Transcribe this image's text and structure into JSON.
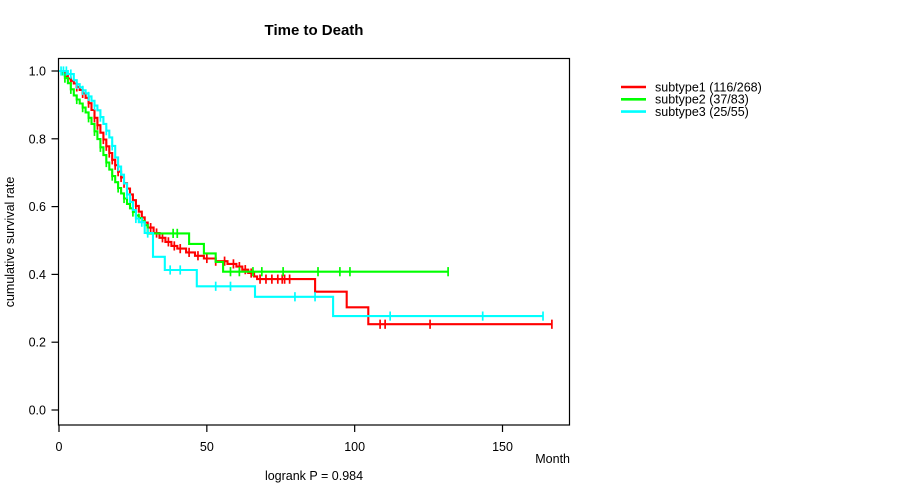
{
  "figure": {
    "title": "Time to Death",
    "ylabel": "cumulative survival rate",
    "xlabel": "Month",
    "annotation": "logrank P = 0.984"
  },
  "colors": {
    "axis": "#000000",
    "text": "#000000",
    "background": "#ffffff",
    "subtype1": "#ff0000",
    "subtype2": "#00ff00",
    "subtype3": "#00ffff"
  },
  "chart_data": {
    "type": "line",
    "subtype": "kaplan-meier-step-curves",
    "title": "Time to Death",
    "xlabel": "Month",
    "ylabel": "cumulative survival rate",
    "annotation": "logrank P = 0.984",
    "xlim": [
      0,
      173
    ],
    "ylim": [
      0,
      1
    ],
    "grid": false,
    "legend_position": "right-outside",
    "xticks": [
      0,
      50,
      100,
      150
    ],
    "xtick_labels": [
      "0",
      "50",
      "100",
      "150"
    ],
    "yticks": [
      0,
      0.2,
      0.4,
      0.6,
      0.8,
      1.0
    ],
    "ytick_labels": [
      "0.0",
      "0.2",
      "0.4",
      "0.6",
      "0.8",
      "1.0"
    ],
    "series": [
      {
        "name": "subtype1",
        "label": "subtype1 (116/268)",
        "events": 116,
        "total": 268,
        "color": "#ff0000",
        "steps": [
          [
            0,
            1.0
          ],
          [
            1,
            0.995
          ],
          [
            2,
            0.985
          ],
          [
            3,
            0.978
          ],
          [
            4,
            0.971
          ],
          [
            5,
            0.963
          ],
          [
            6,
            0.953
          ],
          [
            7,
            0.944
          ],
          [
            8,
            0.934
          ],
          [
            9,
            0.921
          ],
          [
            10,
            0.905
          ],
          [
            11,
            0.885
          ],
          [
            12,
            0.862
          ],
          [
            13,
            0.84
          ],
          [
            14,
            0.818
          ],
          [
            15,
            0.798
          ],
          [
            16,
            0.778
          ],
          [
            17,
            0.758
          ],
          [
            18,
            0.738
          ],
          [
            19,
            0.722
          ],
          [
            20,
            0.703
          ],
          [
            21,
            0.686
          ],
          [
            22,
            0.669
          ],
          [
            23,
            0.653
          ],
          [
            24,
            0.636
          ],
          [
            25,
            0.619
          ],
          [
            26,
            0.602
          ],
          [
            27,
            0.585
          ],
          [
            28,
            0.568
          ],
          [
            29,
            0.553
          ],
          [
            30,
            0.538
          ],
          [
            32,
            0.522
          ],
          [
            34,
            0.508
          ],
          [
            36,
            0.496
          ],
          [
            38,
            0.484
          ],
          [
            40,
            0.476
          ],
          [
            43,
            0.465
          ],
          [
            46,
            0.455
          ],
          [
            49,
            0.447
          ],
          [
            53,
            0.439
          ],
          [
            57,
            0.431
          ],
          [
            60,
            0.423
          ],
          [
            62,
            0.414
          ],
          [
            64,
            0.404
          ],
          [
            66,
            0.394
          ],
          [
            67,
            0.386
          ],
          [
            86.6,
            0.349
          ],
          [
            97.3,
            0.303
          ],
          [
            104.6,
            0.253
          ]
        ],
        "end_month": 166.7,
        "censor_months": [
          4,
          6,
          8,
          10,
          12,
          13,
          15,
          16,
          17,
          18,
          19,
          20,
          21,
          22,
          23,
          24,
          26,
          28,
          30,
          31,
          33,
          35,
          37,
          39,
          41,
          44,
          47,
          50,
          53,
          56,
          59,
          61,
          63,
          65,
          68,
          70,
          72,
          74,
          75.5,
          76.3,
          78,
          108.6,
          110.3,
          125.5,
          166.7
        ]
      },
      {
        "name": "subtype2",
        "label": "subtype2 (37/83)",
        "events": 37,
        "total": 83,
        "color": "#00ff00",
        "steps": [
          [
            0,
            1.0
          ],
          [
            1,
            0.99
          ],
          [
            2,
            0.979
          ],
          [
            3,
            0.964
          ],
          [
            4,
            0.946
          ],
          [
            5,
            0.928
          ],
          [
            6,
            0.916
          ],
          [
            7,
            0.904
          ],
          [
            8,
            0.892
          ],
          [
            9,
            0.878
          ],
          [
            10,
            0.862
          ],
          [
            11,
            0.844
          ],
          [
            12,
            0.822
          ],
          [
            13,
            0.799
          ],
          [
            14,
            0.775
          ],
          [
            15,
            0.752
          ],
          [
            16,
            0.73
          ],
          [
            17,
            0.709
          ],
          [
            18,
            0.69
          ],
          [
            19,
            0.672
          ],
          [
            20,
            0.655
          ],
          [
            21,
            0.639
          ],
          [
            22,
            0.624
          ],
          [
            23,
            0.608
          ],
          [
            24,
            0.595
          ],
          [
            25,
            0.584
          ],
          [
            26,
            0.574
          ],
          [
            27,
            0.566
          ],
          [
            28,
            0.557
          ],
          [
            29,
            0.545
          ],
          [
            30,
            0.521
          ],
          [
            44,
            0.49
          ],
          [
            49,
            0.462
          ],
          [
            53,
            0.437
          ],
          [
            55.5,
            0.408
          ]
        ],
        "end_month": 131.6,
        "censor_months": [
          2,
          4,
          6,
          8,
          10,
          12,
          14,
          16,
          18,
          20,
          22,
          25,
          27,
          38.6,
          40,
          58,
          61,
          65.6,
          68.6,
          75.8,
          87.6,
          95,
          98.4,
          131.6
        ]
      },
      {
        "name": "subtype3",
        "label": "subtype3 (25/55)",
        "events": 25,
        "total": 55,
        "color": "#00ffff",
        "steps": [
          [
            0,
            1.0
          ],
          [
            3,
            0.991
          ],
          [
            5,
            0.973
          ],
          [
            6,
            0.961
          ],
          [
            7,
            0.952
          ],
          [
            8,
            0.943
          ],
          [
            9,
            0.934
          ],
          [
            10,
            0.925
          ],
          [
            11,
            0.912
          ],
          [
            12,
            0.898
          ],
          [
            13,
            0.884
          ],
          [
            14,
            0.864
          ],
          [
            15,
            0.844
          ],
          [
            16,
            0.824
          ],
          [
            17,
            0.804
          ],
          [
            18,
            0.779
          ],
          [
            19,
            0.745
          ],
          [
            20,
            0.718
          ],
          [
            21,
            0.694
          ],
          [
            22,
            0.668
          ],
          [
            23,
            0.636
          ],
          [
            24,
            0.614
          ],
          [
            25,
            0.59
          ],
          [
            26,
            0.565
          ],
          [
            27,
            0.554
          ],
          [
            29,
            0.522
          ],
          [
            31.8,
            0.452
          ],
          [
            35.8,
            0.413
          ],
          [
            46.6,
            0.365
          ],
          [
            66.3,
            0.334
          ],
          [
            92.7,
            0.277
          ]
        ],
        "end_month": 163.7,
        "censor_months": [
          0.7,
          1.5,
          2.5,
          4,
          6,
          8,
          10,
          12,
          14,
          16,
          18,
          20,
          23,
          26,
          28,
          30,
          37.6,
          41,
          53,
          58,
          79.8,
          86.6,
          112,
          143.3,
          163.7
        ]
      }
    ]
  }
}
